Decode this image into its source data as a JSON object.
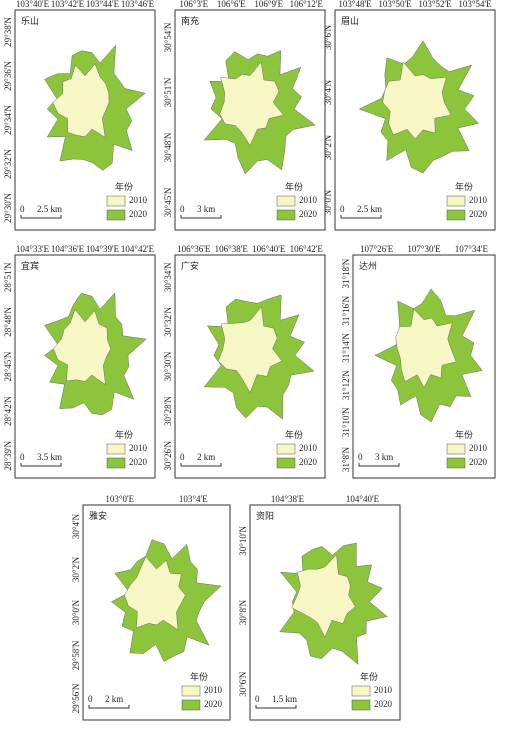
{
  "panels": [
    {
      "name": "乐山",
      "top_labels": [
        "103°40'E",
        "103°42'E",
        "103°44'E",
        "103°46'E"
      ],
      "left_labels": [
        "29°38'N",
        "29°36'N",
        "29°34'N",
        "29°32'N",
        "29°30'N"
      ],
      "scale": "2.5 km"
    },
    {
      "name": "南充",
      "top_labels": [
        "106°3'E",
        "106°6'E",
        "106°9'E",
        "106°12'E"
      ],
      "left_labels": [
        "30°54'N",
        "30°51'N",
        "30°48'N",
        "30°45'N"
      ],
      "scale": "3 km"
    },
    {
      "name": "眉山",
      "top_labels": [
        "103°48'E",
        "103°50'E",
        "103°52'E",
        "103°54'E"
      ],
      "left_labels": [
        "30°6'N",
        "30°4'N",
        "30°2'N",
        "30°0'N"
      ],
      "scale": "2.5 km"
    },
    {
      "name": "宜宾",
      "top_labels": [
        "104°33'E",
        "104°36'E",
        "104°39'E",
        "104°42'E"
      ],
      "left_labels": [
        "28°51'N",
        "28°48'N",
        "28°45'N",
        "28°42'N",
        "28°39'N"
      ],
      "scale": "3.5 km"
    },
    {
      "name": "广安",
      "top_labels": [
        "106°36'E",
        "106°38'E",
        "106°40'E",
        "106°42'E"
      ],
      "left_labels": [
        "30°34'N",
        "30°32'N",
        "30°30'N",
        "30°28'N",
        "30°26'N"
      ],
      "scale": "2 km"
    },
    {
      "name": "达州",
      "top_labels": [
        "107°26'E",
        "107°30'E",
        "107°34'E"
      ],
      "left_labels": [
        "31°18'N",
        "31°16'N",
        "31°14'N",
        "31°12'N",
        "31°10'N",
        "31°8'N"
      ],
      "scale": "3 km"
    },
    {
      "name": "雅安",
      "top_labels": [
        "103°0'E",
        "103°4'E"
      ],
      "left_labels": [
        "30°4'N",
        "30°2'N",
        "30°0'N",
        "29°58'N",
        "29°56'N"
      ],
      "scale": "2 km"
    },
    {
      "name": "资阳",
      "top_labels": [
        "104°38'E",
        "104°40'E"
      ],
      "left_labels": [
        "30°10'N",
        "30°8'N",
        "30°6'N"
      ],
      "scale": "1.5 km"
    }
  ],
  "scale_origin": "0",
  "legend": {
    "title": "年份",
    "items": [
      {
        "label": "2010",
        "color": "#f7f7c6"
      },
      {
        "label": "2020",
        "color": "#8cc43c"
      }
    ]
  }
}
